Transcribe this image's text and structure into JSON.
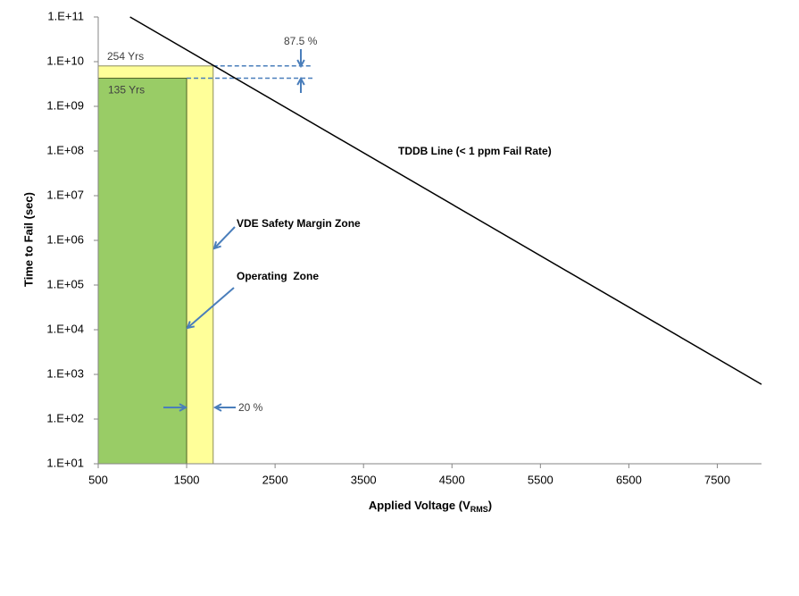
{
  "chart_data": {
    "type": "line",
    "y_label": "Time to Fail (sec)",
    "x_label": "Applied Voltage (V",
    "x_label_subscript": "RMS",
    "x_label_close": ")",
    "log_y": true,
    "xlim": [
      500,
      8000
    ],
    "xticks": [
      500,
      1500,
      2500,
      3500,
      4500,
      5500,
      6500,
      7500
    ],
    "ylim": [
      10,
      100000000000
    ],
    "yticks": [
      {
        "value": 10,
        "label": "1.E+01"
      },
      {
        "value": 100,
        "label": "1.E+02"
      },
      {
        "value": 1000,
        "label": "1.E+03"
      },
      {
        "value": 10000,
        "label": "1.E+04"
      },
      {
        "value": 100000,
        "label": "1.E+05"
      },
      {
        "value": 1000000,
        "label": "1.E+06"
      },
      {
        "value": 10000000,
        "label": "1.E+07"
      },
      {
        "value": 100000000,
        "label": "1.E+08"
      },
      {
        "value": 1000000000,
        "label": "1.E+09"
      },
      {
        "value": 10000000000,
        "label": "1.E+10"
      },
      {
        "value": 100000000000,
        "label": "1.E+11"
      }
    ],
    "series": [
      {
        "name": "TDDB Line (< 1 ppm Fail Rate)",
        "color": "#000000",
        "x": [
          860,
          8000
        ],
        "values": [
          100000000000,
          600
        ]
      }
    ],
    "zones": [
      {
        "name": "VDE Safety Margin Zone",
        "color": "#ffff99",
        "x": [
          500,
          1800
        ],
        "top": 8020000000,
        "top_label": "254 Yrs"
      },
      {
        "name": "Operating  Zone",
        "color": "#99cc66",
        "x": [
          500,
          1500
        ],
        "top": 4260000000,
        "top_label": "135 Yrs"
      }
    ],
    "margin_labels": [
      "87.5 %",
      "20 %"
    ]
  }
}
